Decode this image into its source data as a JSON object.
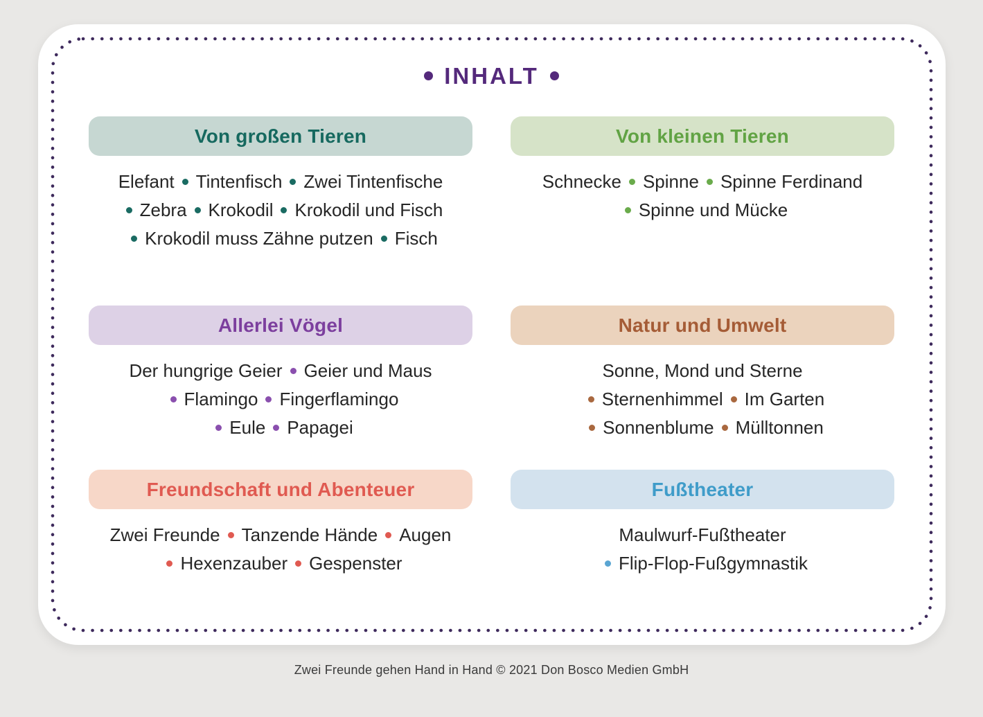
{
  "page": {
    "title": "INHALT",
    "footer": "Zwei Freunde gehen Hand in Hand © 2021 Don Bosco Medien GmbH"
  },
  "colors": {
    "page_bg": "#e9e8e6",
    "card_bg": "#ffffff",
    "title": "#54297b",
    "border_dots": "#3e2a5c",
    "body_text": "#262626"
  },
  "sections": [
    {
      "id": "von-grossen-tieren",
      "title": "Von großen Tieren",
      "header_bg": "#c6d7d2",
      "header_color": "#16695f",
      "bullet_color": "#1a6b62",
      "lines": [
        [
          "Elefant",
          "Tintenfisch",
          "Zwei Tintenfische"
        ],
        [
          "Zebra",
          "Krokodil",
          "Krokodil und Fisch"
        ],
        [
          "Krokodil muss Zähne putzen",
          "Fisch"
        ]
      ]
    },
    {
      "id": "von-kleinen-tieren",
      "title": "Von kleinen Tieren",
      "header_bg": "#d6e3c8",
      "header_color": "#61a344",
      "bullet_color": "#6aab4b",
      "lines": [
        [
          "Schnecke",
          "Spinne",
          "Spinne Ferdinand"
        ],
        [
          "Spinne und Mücke"
        ]
      ]
    },
    {
      "id": "allerlei-voegel",
      "title": "Allerlei Vögel",
      "header_bg": "#ddd1e6",
      "header_color": "#7c3f9e",
      "bullet_color": "#8a4fae",
      "lines": [
        [
          "Der hungrige Geier",
          "Geier und Maus"
        ],
        [
          "Flamingo",
          "Fingerflamingo"
        ],
        [
          "Eule",
          "Papagei"
        ]
      ]
    },
    {
      "id": "natur-und-umwelt",
      "title": "Natur und Umwelt",
      "header_bg": "#ebd3bd",
      "header_color": "#a55c36",
      "bullet_color": "#a9683f",
      "lines": [
        [
          "Sonne, Mond und Sterne"
        ],
        [
          "Sternenhimmel",
          "Im Garten"
        ],
        [
          "Sonnenblume",
          "Mülltonnen"
        ]
      ]
    },
    {
      "id": "freundschaft-und-abenteuer",
      "title": "Freundschaft und Abenteuer",
      "header_bg": "#f7d7c8",
      "header_color": "#e05a51",
      "bullet_color": "#e05a51",
      "lines": [
        [
          "Zwei Freunde",
          "Tanzende Hände",
          "Augen"
        ],
        [
          "Hexenzauber",
          "Gespenster"
        ]
      ]
    },
    {
      "id": "fusstheater",
      "title": "Fußtheater",
      "header_bg": "#d3e2ee",
      "header_color": "#3f9cc9",
      "bullet_color": "#5aa5d2",
      "lines": [
        [
          "Maulwurf-Fußtheater"
        ],
        [
          "Flip-Flop-Fußgymnastik"
        ]
      ]
    }
  ]
}
